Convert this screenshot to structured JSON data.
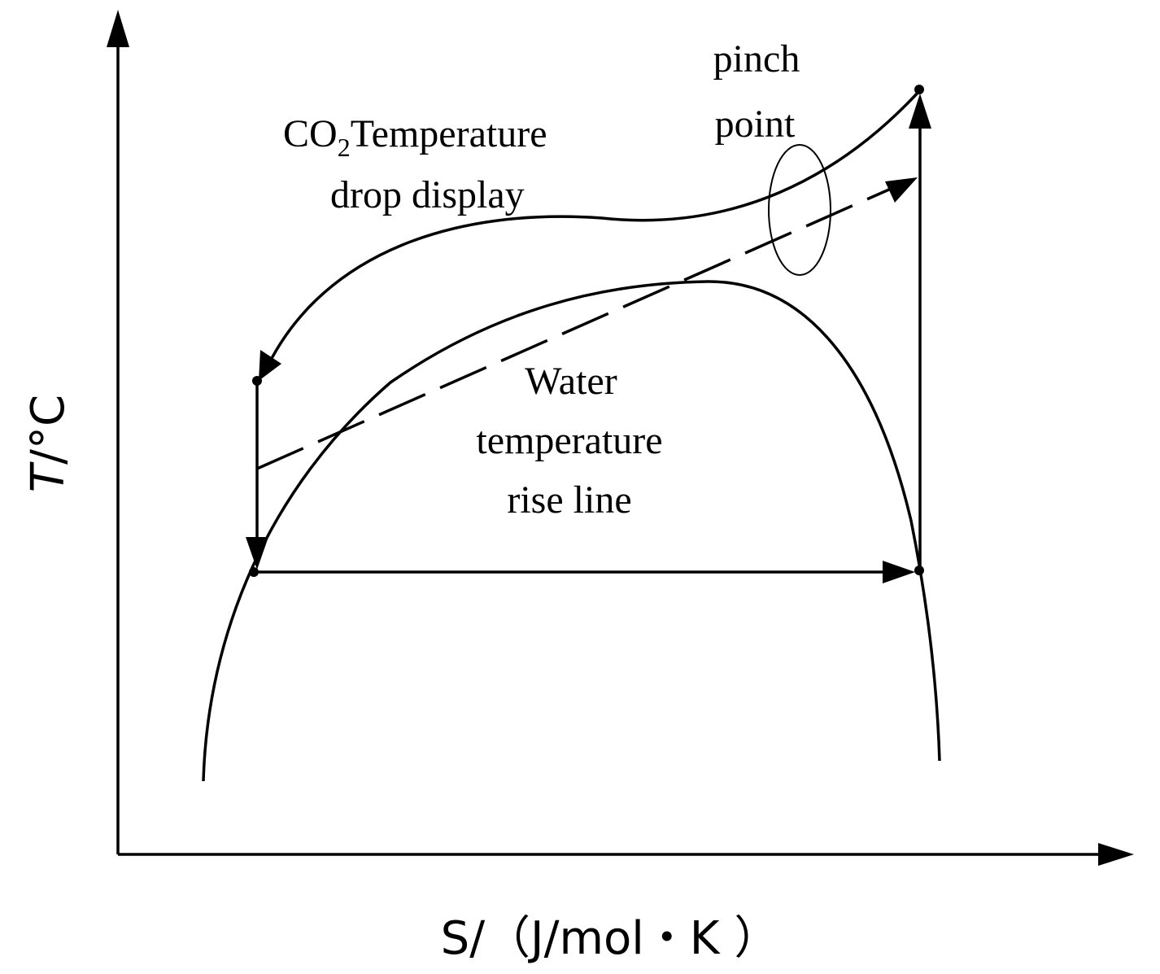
{
  "diagram": {
    "y_axis_label_main": "T",
    "y_axis_label_unit": "/°C",
    "x_axis_label": "S/（J/mol・K ）",
    "labels": {
      "pinch_line1": "pinch",
      "pinch_line2": "point",
      "co2_prefix": "CO",
      "co2_subscript": "2",
      "co2_rest": "Temperature",
      "co2_line2": "drop display",
      "water_line1": "Water",
      "water_line2": "temperature",
      "water_line3": "rise line"
    },
    "colors": {
      "ink": "#000000",
      "background": "#ffffff"
    }
  }
}
